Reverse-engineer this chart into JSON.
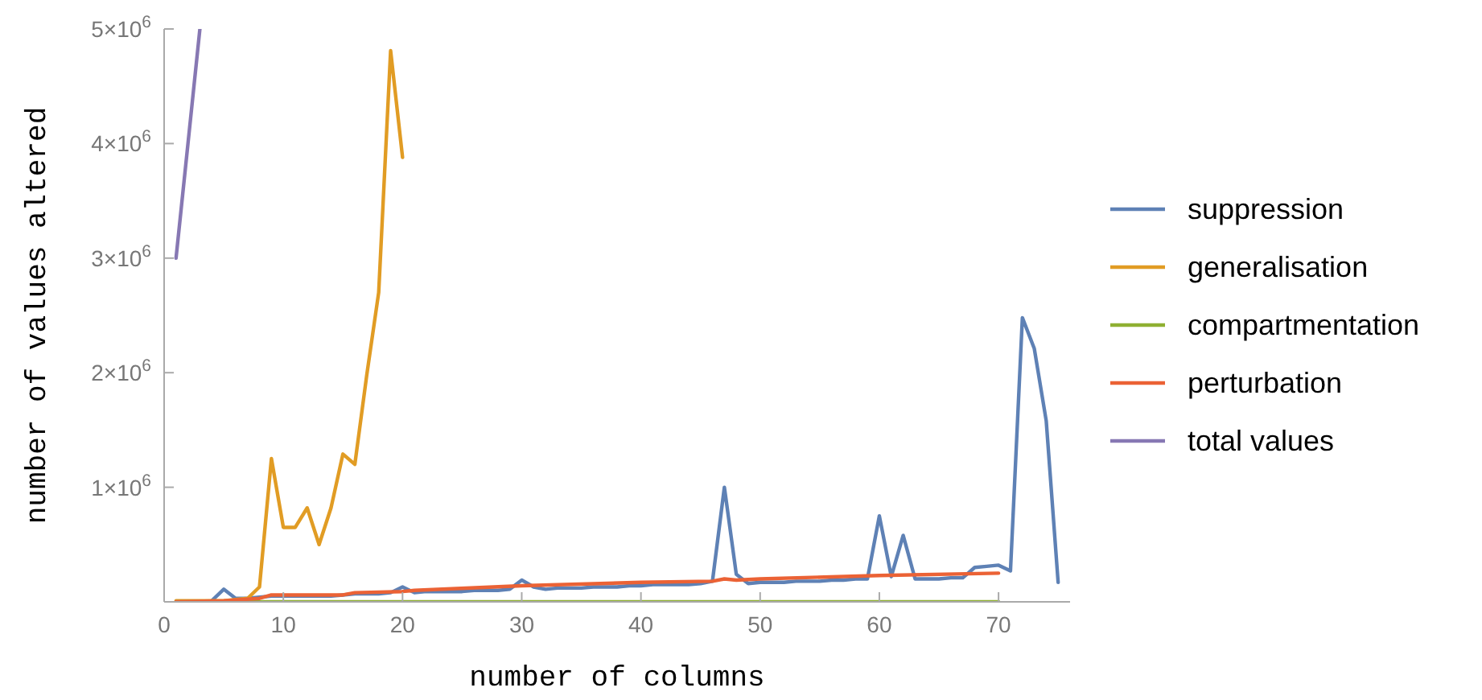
{
  "chart_data": {
    "type": "line",
    "xlabel": "number of columns",
    "ylabel": "number of values altered",
    "xlim": [
      0,
      76
    ],
    "ylim": [
      0,
      5000000
    ],
    "xticks": [
      0,
      10,
      20,
      30,
      40,
      50,
      60,
      70
    ],
    "yticks": [
      {
        "value": 0,
        "label": null
      },
      {
        "value": 1000000,
        "label": "1×10$^{6}$"
      },
      {
        "value": 2000000,
        "label": "2×10$^{6}$"
      },
      {
        "value": 3000000,
        "label": "3×10$^{6}$"
      },
      {
        "value": 4000000,
        "label": "4×10$^{6}$"
      },
      {
        "value": 5000000,
        "label": "5×10$^{6}$"
      }
    ],
    "grid": false,
    "legend": "right",
    "marker": "none",
    "line_style": "solid",
    "series": [
      {
        "name": "suppression",
        "color": "#5e81b5",
        "x": [
          4,
          5,
          6,
          7,
          8,
          9,
          10,
          11,
          12,
          13,
          14,
          15,
          16,
          17,
          18,
          19,
          20,
          21,
          22,
          23,
          24,
          25,
          26,
          27,
          28,
          29,
          30,
          31,
          32,
          33,
          34,
          35,
          36,
          37,
          38,
          39,
          40,
          41,
          42,
          43,
          44,
          45,
          46,
          47,
          48,
          49,
          50,
          51,
          52,
          53,
          54,
          55,
          56,
          57,
          58,
          59,
          60,
          61,
          62,
          63,
          64,
          65,
          66,
          67,
          68,
          69,
          70,
          71,
          72,
          73,
          74,
          75
        ],
        "values": [
          10000,
          110000,
          30000,
          30000,
          40000,
          50000,
          50000,
          50000,
          50000,
          50000,
          50000,
          60000,
          70000,
          70000,
          70000,
          80000,
          130000,
          80000,
          90000,
          90000,
          90000,
          90000,
          100000,
          100000,
          100000,
          110000,
          190000,
          130000,
          110000,
          120000,
          120000,
          120000,
          130000,
          130000,
          130000,
          140000,
          140000,
          150000,
          150000,
          150000,
          150000,
          160000,
          180000,
          1000000,
          240000,
          160000,
          170000,
          170000,
          170000,
          180000,
          180000,
          180000,
          190000,
          190000,
          200000,
          200000,
          750000,
          220000,
          580000,
          200000,
          200000,
          200000,
          210000,
          210000,
          300000,
          310000,
          320000,
          270000,
          2480000,
          2210000,
          1580000,
          170000
        ]
      },
      {
        "name": "generalisation",
        "color": "#e19c24",
        "x": [
          1,
          2,
          3,
          4,
          5,
          6,
          7,
          8,
          9,
          10,
          11,
          12,
          13,
          14,
          15,
          16,
          17,
          18,
          19,
          20
        ],
        "values": [
          10000,
          10000,
          10000,
          10000,
          10000,
          20000,
          30000,
          130000,
          1250000,
          650000,
          650000,
          820000,
          500000,
          820000,
          1290000,
          1200000,
          1980000,
          2700000,
          4810000,
          3880000
        ]
      },
      {
        "name": "compartmentation",
        "color": "#8fb032",
        "x": [
          1,
          70
        ],
        "values": [
          0,
          0
        ]
      },
      {
        "name": "perturbation",
        "color": "#eb6235",
        "x": [
          1,
          5,
          8,
          9,
          15,
          16,
          20,
          21,
          30,
          40,
          46,
          47,
          48,
          50,
          60,
          70
        ],
        "values": [
          0,
          10000,
          30000,
          60000,
          60000,
          80000,
          90000,
          100000,
          140000,
          170000,
          180000,
          200000,
          190000,
          200000,
          230000,
          250000
        ]
      },
      {
        "name": "total values",
        "color": "#8778b3",
        "x": [
          1,
          2,
          3
        ],
        "values": [
          3000000,
          4000000,
          5000000
        ]
      }
    ]
  }
}
